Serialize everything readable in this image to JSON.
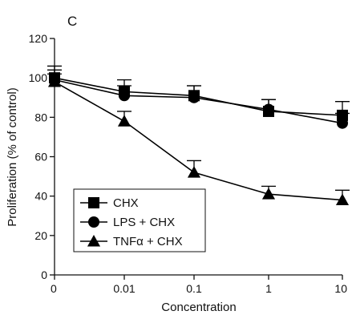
{
  "chart_data": {
    "type": "line",
    "panel_label": "C",
    "title": "",
    "xlabel": "Concentration",
    "ylabel": "Proliferation (% of control)",
    "ylim": [
      0,
      120
    ],
    "y_ticks": [
      0,
      20,
      40,
      60,
      80,
      100,
      120
    ],
    "categories": [
      "0",
      "0.01",
      "0.1",
      "1",
      "10"
    ],
    "grid": false,
    "legend_position": "bottom-left",
    "series": [
      {
        "name": "CHX",
        "marker": "square",
        "color": "#000000",
        "values": [
          100,
          93,
          91,
          83,
          81
        ],
        "errors": [
          6,
          6,
          5,
          6,
          7
        ]
      },
      {
        "name": "LPS + CHX",
        "marker": "circle",
        "color": "#000000",
        "values": [
          99,
          91,
          90,
          84,
          77
        ],
        "errors": [
          5,
          5,
          6,
          5,
          5
        ]
      },
      {
        "name": "TNFα + CHX",
        "marker": "triangle",
        "color": "#000000",
        "values": [
          98,
          78,
          52,
          41,
          38
        ],
        "errors": [
          4,
          5,
          6,
          4,
          5
        ]
      }
    ]
  }
}
